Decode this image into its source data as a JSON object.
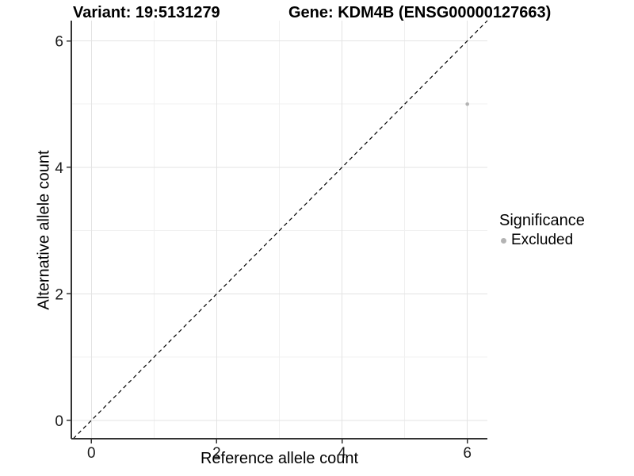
{
  "chart_data": {
    "type": "scatter",
    "titles": {
      "left": "Variant: 19:5131279",
      "right": "Gene: KDM4B (ENSG00000127663)"
    },
    "xlabel": "Reference allele count",
    "ylabel": "Alternative allele count",
    "xlim": [
      -0.32,
      6.32
    ],
    "ylim": [
      -0.29,
      6.32
    ],
    "xticks": [
      0,
      2,
      4,
      6
    ],
    "yticks": [
      0,
      2,
      4,
      6
    ],
    "grid": {
      "on": true,
      "major": [
        0,
        2,
        4,
        6
      ],
      "minor": [
        1,
        3,
        5
      ]
    },
    "reference_line": {
      "slope": 1,
      "intercept": 0,
      "style": "dashed",
      "color": "#000000"
    },
    "series": [
      {
        "name": "Excluded",
        "color": "#b3b3b3",
        "points": [
          {
            "x": 6,
            "y": 5
          }
        ]
      }
    ],
    "legend": {
      "title": "Significance",
      "position": "right",
      "items": [
        {
          "label": "Excluded",
          "color": "#b3b3b3"
        }
      ]
    }
  },
  "colors": {
    "background": "#ffffff",
    "grid_major": "#e3e3e3",
    "grid_minor": "#f0f0f0",
    "axis_line": "#333333",
    "tick_label": "#1a1a1a",
    "point": "#b3b3b3"
  }
}
